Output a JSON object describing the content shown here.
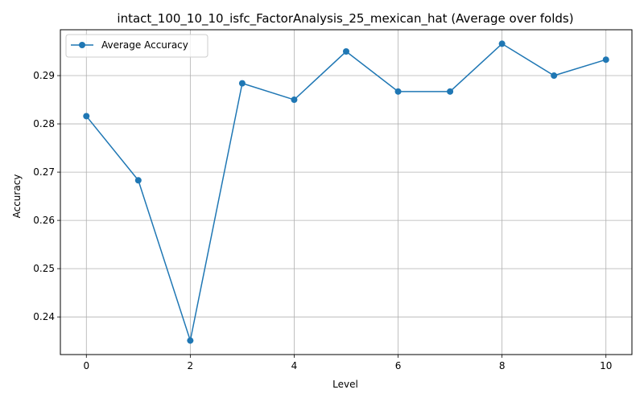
{
  "chart_data": {
    "type": "line",
    "title": "intact_100_10_10_isfc_FactorAnalysis_25_mexican_hat (Average over folds)",
    "xlabel": "Level",
    "ylabel": "Accuracy",
    "x": [
      0,
      1,
      2,
      3,
      4,
      5,
      6,
      7,
      8,
      9,
      10
    ],
    "series": [
      {
        "name": "Average Accuracy",
        "color": "#1f77b4",
        "values": [
          0.2816,
          0.2683,
          0.2351,
          0.2884,
          0.285,
          0.295,
          0.2867,
          0.2867,
          0.2966,
          0.29,
          0.2933
        ]
      }
    ],
    "xlim": [
      -0.5,
      10.5
    ],
    "ylim": [
      0.2322,
      0.2995
    ],
    "x_ticks": [
      0,
      2,
      4,
      6,
      8,
      10
    ],
    "x_tick_labels": [
      "0",
      "2",
      "4",
      "6",
      "8",
      "10"
    ],
    "y_ticks": [
      0.24,
      0.25,
      0.26,
      0.27,
      0.28,
      0.29
    ],
    "y_tick_labels": [
      "0.24",
      "0.25",
      "0.26",
      "0.27",
      "0.28",
      "0.29"
    ],
    "grid": true,
    "legend_position": "top-left"
  }
}
